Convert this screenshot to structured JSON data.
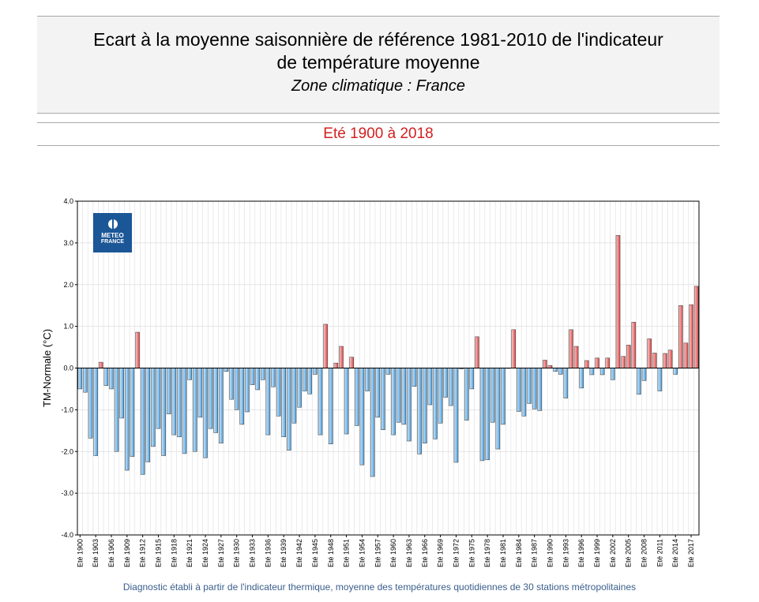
{
  "header": {
    "title_line1": "Ecart à la moyenne saisonnière de référence 1981-2010 de l'indicateur",
    "title_line2": "de température moyenne",
    "subtitle": "Zone climatique : France",
    "period": "Eté 1900 à 2018"
  },
  "logo": {
    "line1": "METEO",
    "line2": "FRANCE"
  },
  "footnote": "Diagnostic établi à partir de l'indicateur thermique, moyenne des températures quotidiennes de 30 stations métropolitaines",
  "colors": {
    "negative": "#4a9fe0",
    "positive": "#e04848",
    "grid": "#dddddd",
    "axis": "#000000"
  },
  "chart_data": {
    "type": "bar",
    "ylabel": "TM-Normale (°C)",
    "ylim": [
      -4.0,
      4.0
    ],
    "yticks": [
      "-4.0",
      "-3.0",
      "-2.0",
      "-1.0",
      "0.0",
      "1.0",
      "2.0",
      "3.0",
      "4.0"
    ],
    "grid": true,
    "xtick_labels": [
      "Eté 1900",
      "Eté 1903",
      "Eté 1906",
      "Eté 1909",
      "Eté 1912",
      "Eté 1915",
      "Eté 1918",
      "Eté 1921",
      "Eté 1924",
      "Eté 1927",
      "Eté 1930",
      "Eté 1933",
      "Eté 1936",
      "Eté 1939",
      "Eté 1942",
      "Eté 1945",
      "Eté 1948",
      "Eté 1951",
      "Eté 1954",
      "Eté 1957",
      "Eté 1960",
      "Eté 1963",
      "Eté 1966",
      "Eté 1969",
      "Eté 1972",
      "Eté 1975",
      "Eté 1978",
      "Eté 1981",
      "Eté 1984",
      "Eté 1987",
      "Eté 1990",
      "Eté 1993",
      "Eté 1996",
      "Eté 1999",
      "Eté 2002",
      "Eté 2005",
      "Eté 2008",
      "Eté 2011",
      "Eté 2014",
      "Eté 2017"
    ],
    "x_start": 1900,
    "x_end": 2018,
    "values": [
      -0.5,
      -0.58,
      -1.68,
      -2.1,
      0.14,
      -0.42,
      -0.5,
      -2.0,
      -1.2,
      -2.45,
      -2.12,
      0.86,
      -2.55,
      -2.25,
      -1.88,
      -1.45,
      -2.1,
      -1.1,
      -1.6,
      -1.65,
      -2.05,
      -0.28,
      -2.0,
      -1.18,
      -2.15,
      -1.45,
      -1.55,
      -1.8,
      -0.08,
      -0.75,
      -1.0,
      -1.35,
      -1.05,
      -0.4,
      -0.52,
      -0.28,
      -1.6,
      -0.45,
      -1.15,
      -1.65,
      -1.97,
      -1.32,
      -0.94,
      -0.55,
      -0.62,
      -0.15,
      -1.6,
      1.05,
      -1.82,
      0.12,
      0.52,
      -1.58,
      0.26,
      -1.38,
      -2.32,
      -0.55,
      -2.6,
      -1.18,
      -1.48,
      -0.15,
      -1.6,
      -1.3,
      -1.35,
      -1.75,
      -0.44,
      -2.06,
      -1.8,
      -0.88,
      -1.7,
      -1.32,
      -0.7,
      -0.9,
      -2.26,
      -0.02,
      -1.25,
      -0.5,
      0.75,
      -2.22,
      -2.2,
      -1.3,
      -1.94,
      -1.35,
      0.0,
      0.92,
      -1.04,
      -1.15,
      -0.85,
      -0.98,
      -1.02,
      0.19,
      0.06,
      -0.08,
      -0.15,
      -0.72,
      0.92,
      0.52,
      -0.48,
      0.18,
      -0.16,
      0.24,
      -0.16,
      0.24,
      -0.28,
      3.18,
      0.28,
      0.55,
      1.1,
      -0.63,
      -0.3,
      0.7,
      0.36,
      -0.55,
      0.35,
      0.43,
      -0.15,
      1.5,
      0.6,
      1.52,
      1.96
    ]
  }
}
